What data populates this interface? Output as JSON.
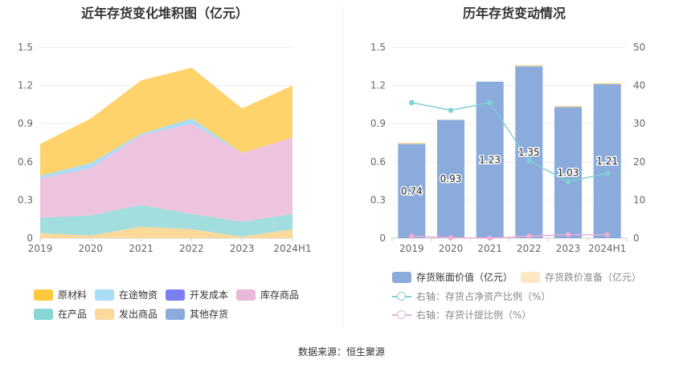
{
  "chart_data": [
    {
      "type": "area",
      "stacked": true,
      "title": "近年存货变化堆积图（亿元）",
      "categories": [
        "2019",
        "2020",
        "2021",
        "2022",
        "2023",
        "2024H1"
      ],
      "yticks": [
        "0",
        "0.3",
        "0.6",
        "0.9",
        "1.2",
        "1.5"
      ],
      "ylim": [
        0,
        1.5
      ],
      "series": [
        {
          "name": "发出商品",
          "color": "#fbd99b",
          "values": [
            0.04,
            0.02,
            0.09,
            0.07,
            0.01,
            0.07
          ]
        },
        {
          "name": "在产品",
          "color": "#a2dedd",
          "values": [
            0.12,
            0.16,
            0.17,
            0.12,
            0.12,
            0.12
          ]
        },
        {
          "name": "库存商品",
          "color": "#edc3e0",
          "values": [
            0.31,
            0.37,
            0.55,
            0.71,
            0.54,
            0.6
          ]
        },
        {
          "name": "在途物资",
          "color": "#a9ddf7",
          "values": [
            0.02,
            0.04,
            0.01,
            0.04,
            0.0,
            0.0
          ]
        },
        {
          "name": "原材料",
          "color": "#ffd36b",
          "values": [
            0.25,
            0.35,
            0.42,
            0.4,
            0.35,
            0.41
          ]
        },
        {
          "name": "开发成本",
          "color": "#7b7ff0",
          "values": [
            0,
            0,
            0,
            0,
            0,
            0
          ]
        },
        {
          "name": "其他存货",
          "color": "#8aabdb",
          "values": [
            0,
            0,
            0,
            0,
            0,
            0
          ]
        }
      ],
      "legend": [
        "原材料",
        "在途物资",
        "开发成本",
        "库存商品",
        "在产品",
        "发出商品",
        "其他存货"
      ]
    },
    {
      "type": "bar",
      "title": "历年存货变动情况",
      "categories": [
        "2019",
        "2020",
        "2021",
        "2022",
        "2023",
        "2024H1"
      ],
      "yticks_left": [
        "0",
        "0.3",
        "0.6",
        "0.9",
        "1.2",
        "1.5"
      ],
      "yticks_right": [
        "0",
        "10",
        "20",
        "30",
        "40",
        "50"
      ],
      "ylim": [
        0,
        1.5
      ],
      "y2lim": [
        0,
        50
      ],
      "series": [
        {
          "name": "存货账面价值（亿元）",
          "type": "bar",
          "color": "#8aabdb",
          "values": [
            0.74,
            0.93,
            1.23,
            1.35,
            1.03,
            1.21
          ],
          "labels": [
            "0.74",
            "0.93",
            "1.23",
            "1.35",
            "1.03",
            "1.21"
          ]
        },
        {
          "name": "存货跌价准备（亿元）",
          "type": "bar",
          "color": "#fde8c4",
          "values": [
            0.01,
            0.0,
            0.0,
            0.01,
            0.01,
            0.01
          ]
        },
        {
          "name": "右轴：存货占净资产比例（%）",
          "type": "line",
          "axis": "right",
          "color": "#7fd1d4",
          "values": [
            35.5,
            33.5,
            35.5,
            20.3,
            14.8,
            17.0
          ]
        },
        {
          "name": "右轴：存货计提比例（%）",
          "type": "line",
          "axis": "right",
          "color": "#eeaed8",
          "values": [
            0.5,
            0.1,
            0.0,
            0.5,
            0.9,
            0.9
          ]
        }
      ]
    }
  ],
  "source": "数据来源：恒生聚源"
}
